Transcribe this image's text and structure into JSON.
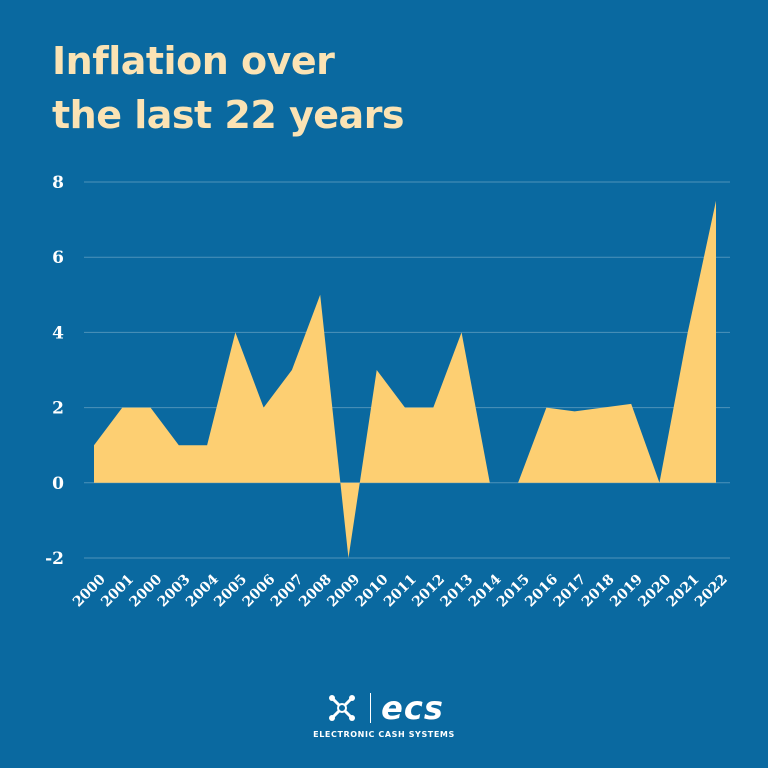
{
  "title_lines": [
    "Inflation over",
    "the last 22 years"
  ],
  "chart_data": {
    "type": "area",
    "title": "Inflation over the last 22 years",
    "xlabel": "",
    "ylabel": "",
    "categories": [
      "2000",
      "2001",
      "2000",
      "2003",
      "2004",
      "2005",
      "2006",
      "2007",
      "2008",
      "2009",
      "2010",
      "2011",
      "2012",
      "2013",
      "2014",
      "2015",
      "2016",
      "2017",
      "2018",
      "2019",
      "2020",
      "2021",
      "2022"
    ],
    "values": [
      1,
      2,
      2,
      1,
      1,
      4,
      2,
      3,
      5,
      -2,
      3,
      2,
      2,
      4,
      0,
      0,
      2,
      1.9,
      2,
      2.1,
      0,
      4,
      7.5
    ],
    "ylim": [
      -2,
      8
    ],
    "yticks": [
      -2,
      0,
      2,
      4,
      6,
      8
    ],
    "grid": true,
    "area_color": "#fdcf72",
    "background_color": "#0a69a0"
  },
  "logo": {
    "name": "ecs",
    "tagline": "ELECTRONIC CASH SYSTEMS"
  }
}
